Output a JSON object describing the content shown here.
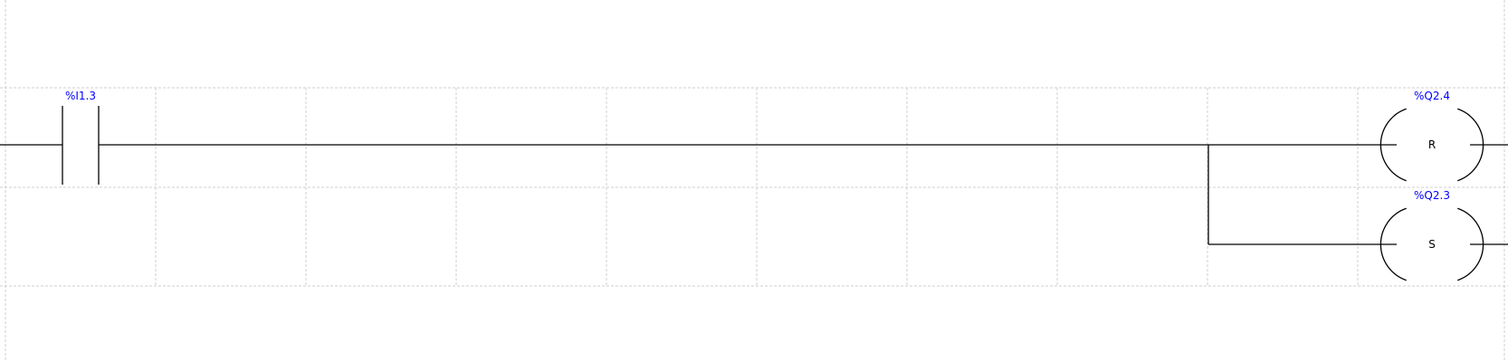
{
  "colors": {
    "address_text": "#0000ff",
    "wire": "#000000",
    "grid": "#cfcfcf",
    "background": "#ffffff"
  },
  "rung": {
    "contact": {
      "type": "normally-open-contact",
      "address": "%I1.3"
    },
    "coils": [
      {
        "type": "reset-coil",
        "address": "%Q2.4",
        "letter": "R"
      },
      {
        "type": "set-coil",
        "address": "%Q2.3",
        "letter": "S"
      }
    ]
  }
}
